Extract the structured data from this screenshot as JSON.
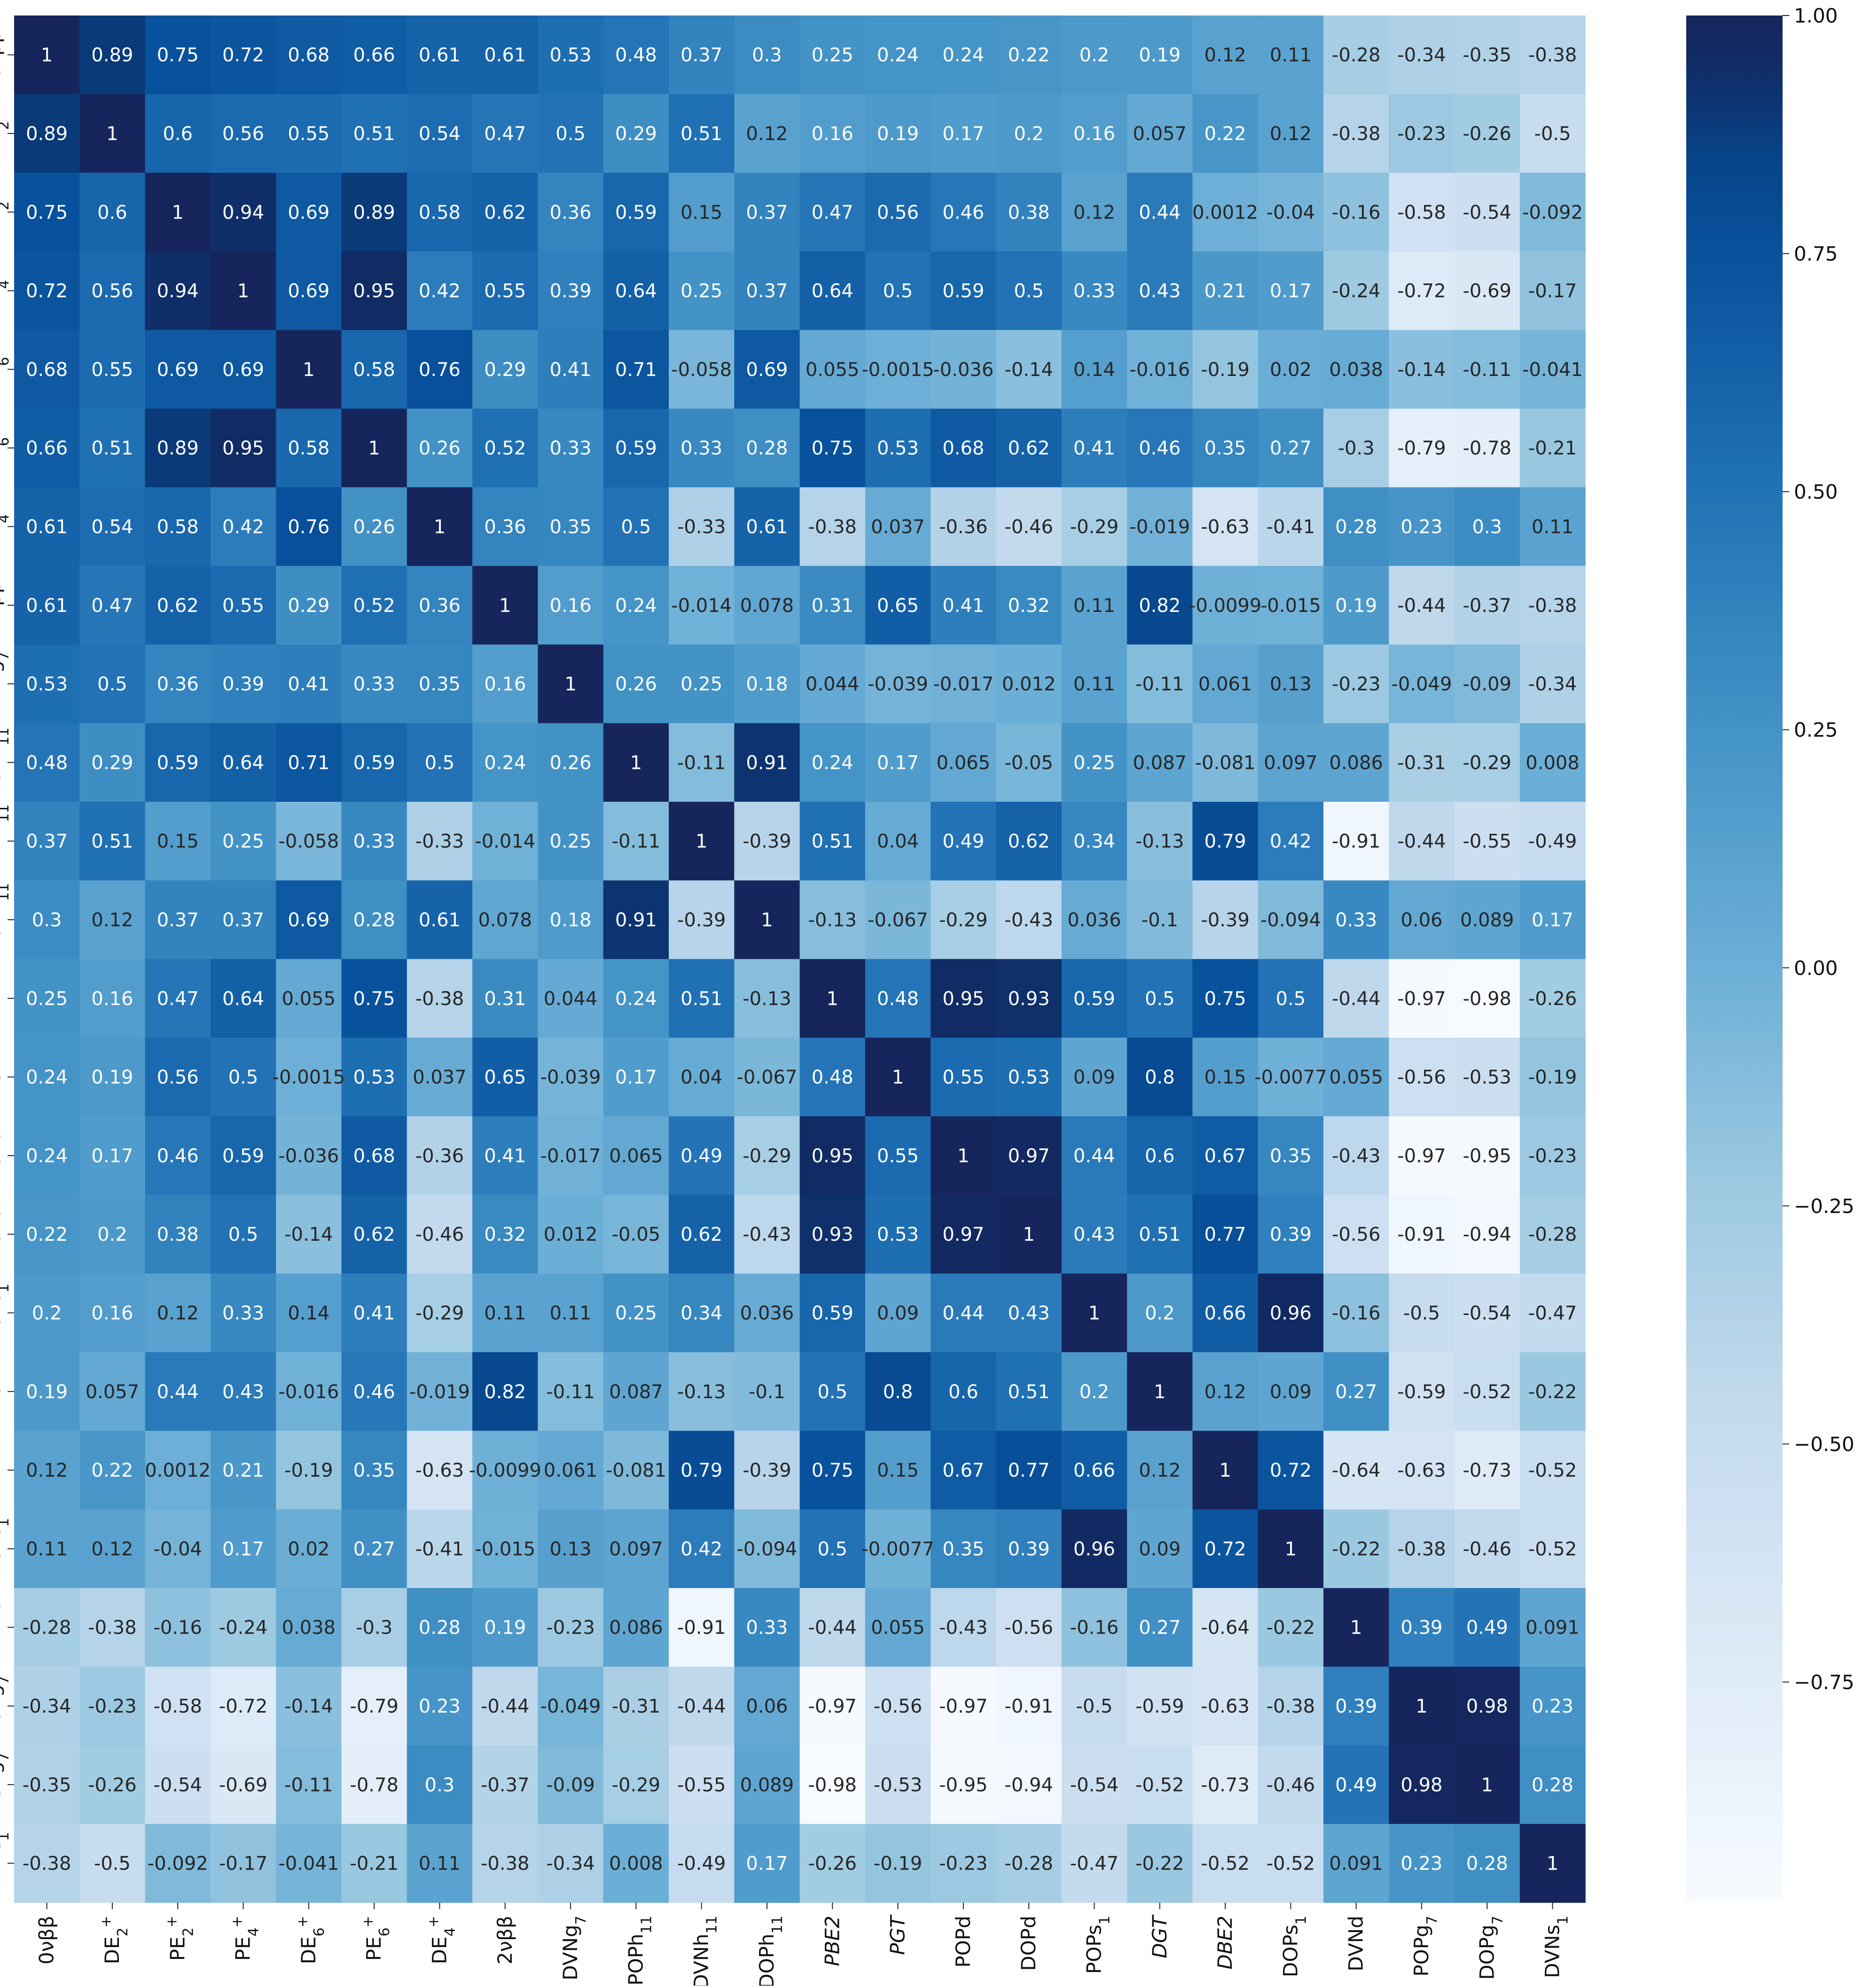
{
  "chart_data": {
    "type": "heatmap",
    "colormap": "Blues",
    "title": "",
    "xlabel": "",
    "ylabel": "",
    "vmin": -0.98,
    "vmax": 1.0,
    "colorbar_ticks": [
      1.0,
      0.75,
      0.5,
      0.25,
      0.0,
      -0.25,
      -0.5,
      -0.75
    ],
    "colorbar_tick_labels": [
      "1.00",
      "0.75",
      "0.50",
      "0.25",
      "0.00",
      "−0.25",
      "−0.50",
      "−0.75"
    ],
    "variables": [
      {
        "base": "0νββ",
        "sub": "",
        "sup": "",
        "italic": false
      },
      {
        "base": "DE",
        "sub": "2",
        "sup": "+",
        "italic": false
      },
      {
        "base": "PE",
        "sub": "2",
        "sup": "+",
        "italic": false
      },
      {
        "base": "PE",
        "sub": "4",
        "sup": "+",
        "italic": false
      },
      {
        "base": "DE",
        "sub": "6",
        "sup": "+",
        "italic": false
      },
      {
        "base": "PE",
        "sub": "6",
        "sup": "+",
        "italic": false
      },
      {
        "base": "DE",
        "sub": "4",
        "sup": "+",
        "italic": false
      },
      {
        "base": "2νββ",
        "sub": "",
        "sup": "",
        "italic": false
      },
      {
        "base": "DVNg",
        "sub": "7",
        "sup": "",
        "italic": false
      },
      {
        "base": "POPh",
        "sub": "11",
        "sup": "",
        "italic": false
      },
      {
        "base": "DVNh",
        "sub": "11",
        "sup": "",
        "italic": false
      },
      {
        "base": "DOPh",
        "sub": "11",
        "sup": "",
        "italic": false
      },
      {
        "base": "PBE2",
        "sub": "",
        "sup": "",
        "italic": true
      },
      {
        "base": "PGT",
        "sub": "",
        "sup": "",
        "italic": true
      },
      {
        "base": "POPd",
        "sub": "",
        "sup": "",
        "italic": false
      },
      {
        "base": "DOPd",
        "sub": "",
        "sup": "",
        "italic": false
      },
      {
        "base": "POPs",
        "sub": "1",
        "sup": "",
        "italic": false
      },
      {
        "base": "DGT",
        "sub": "",
        "sup": "",
        "italic": true
      },
      {
        "base": "DBE2",
        "sub": "",
        "sup": "",
        "italic": true
      },
      {
        "base": "DOPs",
        "sub": "1",
        "sup": "",
        "italic": false
      },
      {
        "base": "DVNd",
        "sub": "",
        "sup": "",
        "italic": false
      },
      {
        "base": "POPg",
        "sub": "7",
        "sup": "",
        "italic": false
      },
      {
        "base": "DOPg",
        "sub": "7",
        "sup": "",
        "italic": false
      },
      {
        "base": "DVNs",
        "sub": "1",
        "sup": "",
        "italic": false
      }
    ],
    "matrix": [
      [
        1,
        0.89,
        0.75,
        0.72,
        0.68,
        0.66,
        0.61,
        0.61,
        0.53,
        0.48,
        0.37,
        0.3,
        0.25,
        0.24,
        0.24,
        0.22,
        0.2,
        0.19,
        0.12,
        0.11,
        -0.28,
        -0.34,
        -0.35,
        -0.38
      ],
      [
        0.89,
        1,
        0.6,
        0.56,
        0.55,
        0.51,
        0.54,
        0.47,
        0.5,
        0.29,
        0.51,
        0.12,
        0.16,
        0.19,
        0.17,
        0.2,
        0.16,
        0.057,
        0.22,
        0.12,
        -0.38,
        -0.23,
        -0.26,
        -0.5
      ],
      [
        0.75,
        0.6,
        1,
        0.94,
        0.69,
        0.89,
        0.58,
        0.62,
        0.36,
        0.59,
        0.15,
        0.37,
        0.47,
        0.56,
        0.46,
        0.38,
        0.12,
        0.44,
        0.0012,
        -0.04,
        -0.16,
        -0.58,
        -0.54,
        -0.092
      ],
      [
        0.72,
        0.56,
        0.94,
        1,
        0.69,
        0.95,
        0.42,
        0.55,
        0.39,
        0.64,
        0.25,
        0.37,
        0.64,
        0.5,
        0.59,
        0.5,
        0.33,
        0.43,
        0.21,
        0.17,
        -0.24,
        -0.72,
        -0.69,
        -0.17
      ],
      [
        0.68,
        0.55,
        0.69,
        0.69,
        1,
        0.58,
        0.76,
        0.29,
        0.41,
        0.71,
        -0.058,
        0.69,
        0.055,
        -0.0015,
        -0.036,
        -0.14,
        0.14,
        -0.016,
        -0.19,
        0.02,
        0.038,
        -0.14,
        -0.11,
        -0.041
      ],
      [
        0.66,
        0.51,
        0.89,
        0.95,
        0.58,
        1,
        0.26,
        0.52,
        0.33,
        0.59,
        0.33,
        0.28,
        0.75,
        0.53,
        0.68,
        0.62,
        0.41,
        0.46,
        0.35,
        0.27,
        -0.3,
        -0.79,
        -0.78,
        -0.21
      ],
      [
        0.61,
        0.54,
        0.58,
        0.42,
        0.76,
        0.26,
        1,
        0.36,
        0.35,
        0.5,
        -0.33,
        0.61,
        -0.38,
        0.037,
        -0.36,
        -0.46,
        -0.29,
        -0.019,
        -0.63,
        -0.41,
        0.28,
        0.23,
        0.3,
        0.11
      ],
      [
        0.61,
        0.47,
        0.62,
        0.55,
        0.29,
        0.52,
        0.36,
        1,
        0.16,
        0.24,
        -0.014,
        0.078,
        0.31,
        0.65,
        0.41,
        0.32,
        0.11,
        0.82,
        -0.0099,
        -0.015,
        0.19,
        -0.44,
        -0.37,
        -0.38
      ],
      [
        0.53,
        0.5,
        0.36,
        0.39,
        0.41,
        0.33,
        0.35,
        0.16,
        1,
        0.26,
        0.25,
        0.18,
        0.044,
        -0.039,
        -0.017,
        0.012,
        0.11,
        -0.11,
        0.061,
        0.13,
        -0.23,
        -0.049,
        -0.09,
        -0.34
      ],
      [
        0.48,
        0.29,
        0.59,
        0.64,
        0.71,
        0.59,
        0.5,
        0.24,
        0.26,
        1,
        -0.11,
        0.91,
        0.24,
        0.17,
        0.065,
        -0.05,
        0.25,
        0.087,
        -0.081,
        0.097,
        0.086,
        -0.31,
        -0.29,
        0.008
      ],
      [
        0.37,
        0.51,
        0.15,
        0.25,
        -0.058,
        0.33,
        -0.33,
        -0.014,
        0.25,
        -0.11,
        1,
        -0.39,
        0.51,
        0.04,
        0.49,
        0.62,
        0.34,
        -0.13,
        0.79,
        0.42,
        -0.91,
        -0.44,
        -0.55,
        -0.49
      ],
      [
        0.3,
        0.12,
        0.37,
        0.37,
        0.69,
        0.28,
        0.61,
        0.078,
        0.18,
        0.91,
        -0.39,
        1,
        -0.13,
        -0.067,
        -0.29,
        -0.43,
        0.036,
        -0.1,
        -0.39,
        -0.094,
        0.33,
        0.06,
        0.089,
        0.17
      ],
      [
        0.25,
        0.16,
        0.47,
        0.64,
        0.055,
        0.75,
        -0.38,
        0.31,
        0.044,
        0.24,
        0.51,
        -0.13,
        1,
        0.48,
        0.95,
        0.93,
        0.59,
        0.5,
        0.75,
        0.5,
        -0.44,
        -0.97,
        -0.98,
        -0.26
      ],
      [
        0.24,
        0.19,
        0.56,
        0.5,
        -0.0015,
        0.53,
        0.037,
        0.65,
        -0.039,
        0.17,
        0.04,
        -0.067,
        0.48,
        1,
        0.55,
        0.53,
        0.09,
        0.8,
        0.15,
        -0.0077,
        0.055,
        -0.56,
        -0.53,
        -0.19
      ],
      [
        0.24,
        0.17,
        0.46,
        0.59,
        -0.036,
        0.68,
        -0.36,
        0.41,
        -0.017,
        0.065,
        0.49,
        -0.29,
        0.95,
        0.55,
        1,
        0.97,
        0.44,
        0.6,
        0.67,
        0.35,
        -0.43,
        -0.97,
        -0.95,
        -0.23
      ],
      [
        0.22,
        0.2,
        0.38,
        0.5,
        -0.14,
        0.62,
        -0.46,
        0.32,
        0.012,
        -0.05,
        0.62,
        -0.43,
        0.93,
        0.53,
        0.97,
        1,
        0.43,
        0.51,
        0.77,
        0.39,
        -0.56,
        -0.91,
        -0.94,
        -0.28
      ],
      [
        0.2,
        0.16,
        0.12,
        0.33,
        0.14,
        0.41,
        -0.29,
        0.11,
        0.11,
        0.25,
        0.34,
        0.036,
        0.59,
        0.09,
        0.44,
        0.43,
        1,
        0.2,
        0.66,
        0.96,
        -0.16,
        -0.5,
        -0.54,
        -0.47
      ],
      [
        0.19,
        0.057,
        0.44,
        0.43,
        -0.016,
        0.46,
        -0.019,
        0.82,
        -0.11,
        0.087,
        -0.13,
        -0.1,
        0.5,
        0.8,
        0.6,
        0.51,
        0.2,
        1,
        0.12,
        0.09,
        0.27,
        -0.59,
        -0.52,
        -0.22
      ],
      [
        0.12,
        0.22,
        0.0012,
        0.21,
        -0.19,
        0.35,
        -0.63,
        -0.0099,
        0.061,
        -0.081,
        0.79,
        -0.39,
        0.75,
        0.15,
        0.67,
        0.77,
        0.66,
        0.12,
        1,
        0.72,
        -0.64,
        -0.63,
        -0.73,
        -0.52
      ],
      [
        0.11,
        0.12,
        -0.04,
        0.17,
        0.02,
        0.27,
        -0.41,
        -0.015,
        0.13,
        0.097,
        0.42,
        -0.094,
        0.5,
        -0.0077,
        0.35,
        0.39,
        0.96,
        0.09,
        0.72,
        1,
        -0.22,
        -0.38,
        -0.46,
        -0.52
      ],
      [
        -0.28,
        -0.38,
        -0.16,
        -0.24,
        0.038,
        -0.3,
        0.28,
        0.19,
        -0.23,
        0.086,
        -0.91,
        0.33,
        -0.44,
        0.055,
        -0.43,
        -0.56,
        -0.16,
        0.27,
        -0.64,
        -0.22,
        1,
        0.39,
        0.49,
        0.091
      ],
      [
        -0.34,
        -0.23,
        -0.58,
        -0.72,
        -0.14,
        -0.79,
        0.23,
        -0.44,
        -0.049,
        -0.31,
        -0.44,
        0.06,
        -0.97,
        -0.56,
        -0.97,
        -0.91,
        -0.5,
        -0.59,
        -0.63,
        -0.38,
        0.39,
        1,
        0.98,
        0.23
      ],
      [
        -0.35,
        -0.26,
        -0.54,
        -0.69,
        -0.11,
        -0.78,
        0.3,
        -0.37,
        -0.09,
        -0.29,
        -0.55,
        0.089,
        -0.98,
        -0.53,
        -0.95,
        -0.94,
        -0.54,
        -0.52,
        -0.73,
        -0.46,
        0.49,
        0.98,
        1,
        0.28
      ],
      [
        -0.38,
        -0.5,
        -0.092,
        -0.17,
        -0.041,
        -0.21,
        0.11,
        -0.38,
        -0.34,
        0.008,
        -0.49,
        0.17,
        -0.26,
        -0.19,
        -0.23,
        -0.28,
        -0.47,
        -0.22,
        -0.52,
        -0.52,
        0.091,
        0.23,
        0.28,
        1
      ]
    ]
  }
}
